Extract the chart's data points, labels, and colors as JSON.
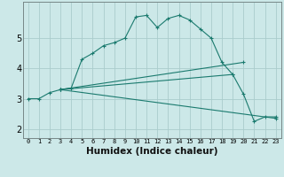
{
  "title": "",
  "xlabel": "Humidex (Indice chaleur)",
  "ylabel": "",
  "bg_color": "#cce8e8",
  "line_color": "#1a7a6e",
  "grid_color": "#aacccc",
  "x_ticks": [
    0,
    1,
    2,
    3,
    4,
    5,
    6,
    7,
    8,
    9,
    10,
    11,
    12,
    13,
    14,
    15,
    16,
    17,
    18,
    19,
    20,
    21,
    22,
    23
  ],
  "y_ticks": [
    2,
    3,
    4,
    5
  ],
  "ylim": [
    1.7,
    6.2
  ],
  "xlim": [
    -0.5,
    23.5
  ],
  "lines": [
    {
      "x": [
        0,
        1,
        2,
        3,
        4,
        5,
        6,
        7,
        8,
        9,
        10,
        11,
        12,
        13,
        14,
        15,
        16,
        17,
        18,
        19,
        20,
        21,
        22,
        23
      ],
      "y": [
        3.0,
        3.0,
        3.2,
        3.3,
        3.35,
        4.3,
        4.5,
        4.75,
        4.85,
        5.0,
        5.7,
        5.75,
        5.35,
        5.65,
        5.75,
        5.6,
        5.3,
        5.0,
        4.2,
        3.8,
        3.15,
        2.25,
        2.4,
        2.4
      ]
    },
    {
      "x": [
        3,
        23
      ],
      "y": [
        3.3,
        2.35
      ]
    },
    {
      "x": [
        3,
        19
      ],
      "y": [
        3.3,
        3.8
      ]
    },
    {
      "x": [
        3,
        20
      ],
      "y": [
        3.3,
        4.2
      ]
    }
  ]
}
